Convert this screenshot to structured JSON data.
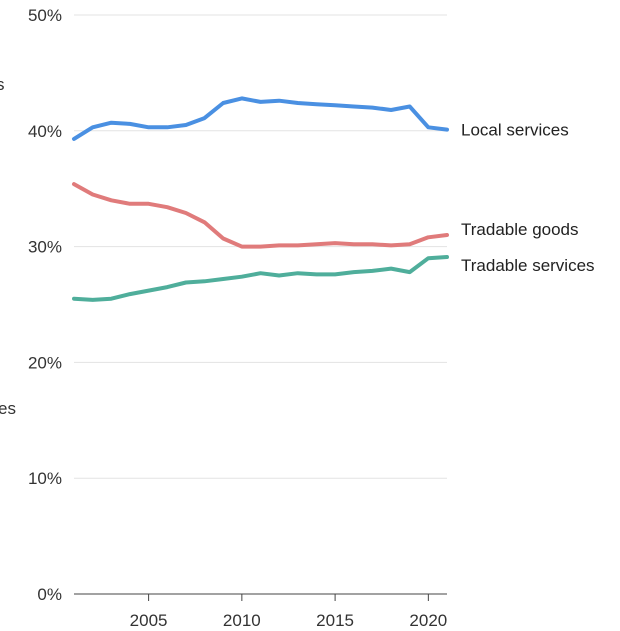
{
  "chart_data": {
    "type": "line",
    "title": "",
    "xlabel": "",
    "ylabel": "",
    "fragments": [
      "s",
      "es"
    ],
    "xlim": [
      2001,
      2021
    ],
    "ylim": [
      0,
      50
    ],
    "y_ticks": [
      0,
      10,
      20,
      30,
      40,
      50
    ],
    "y_tick_labels": [
      "0%",
      "10%",
      "20%",
      "30%",
      "40%",
      "50%"
    ],
    "x_ticks": [
      2005,
      2010,
      2015,
      2020
    ],
    "x_tick_labels": [
      "2005",
      "2010",
      "2015",
      "2020"
    ],
    "grid": true,
    "x": [
      2001,
      2002,
      2003,
      2004,
      2005,
      2006,
      2007,
      2008,
      2009,
      2010,
      2011,
      2012,
      2013,
      2014,
      2015,
      2016,
      2017,
      2018,
      2019,
      2020,
      2021
    ],
    "series": [
      {
        "name": "Local services",
        "color": "#4a90e2",
        "values": [
          39.3,
          40.3,
          40.7,
          40.6,
          40.3,
          40.3,
          40.5,
          41.1,
          42.4,
          42.8,
          42.5,
          42.6,
          42.4,
          42.3,
          42.2,
          42.1,
          42.0,
          41.8,
          42.1,
          40.3,
          40.1
        ]
      },
      {
        "name": "Tradable goods",
        "color": "#e07b7b",
        "values": [
          35.4,
          34.5,
          34.0,
          33.7,
          33.7,
          33.4,
          32.9,
          32.1,
          30.7,
          30.0,
          30.0,
          30.1,
          30.1,
          30.2,
          30.3,
          30.2,
          30.2,
          30.1,
          30.2,
          30.8,
          31.0
        ]
      },
      {
        "name": "Tradable services",
        "color": "#4fae9b",
        "values": [
          25.5,
          25.4,
          25.5,
          25.9,
          26.2,
          26.5,
          26.9,
          27.0,
          27.2,
          27.4,
          27.7,
          27.5,
          27.7,
          27.6,
          27.6,
          27.8,
          27.9,
          28.1,
          27.8,
          29.0,
          29.1
        ]
      }
    ]
  }
}
